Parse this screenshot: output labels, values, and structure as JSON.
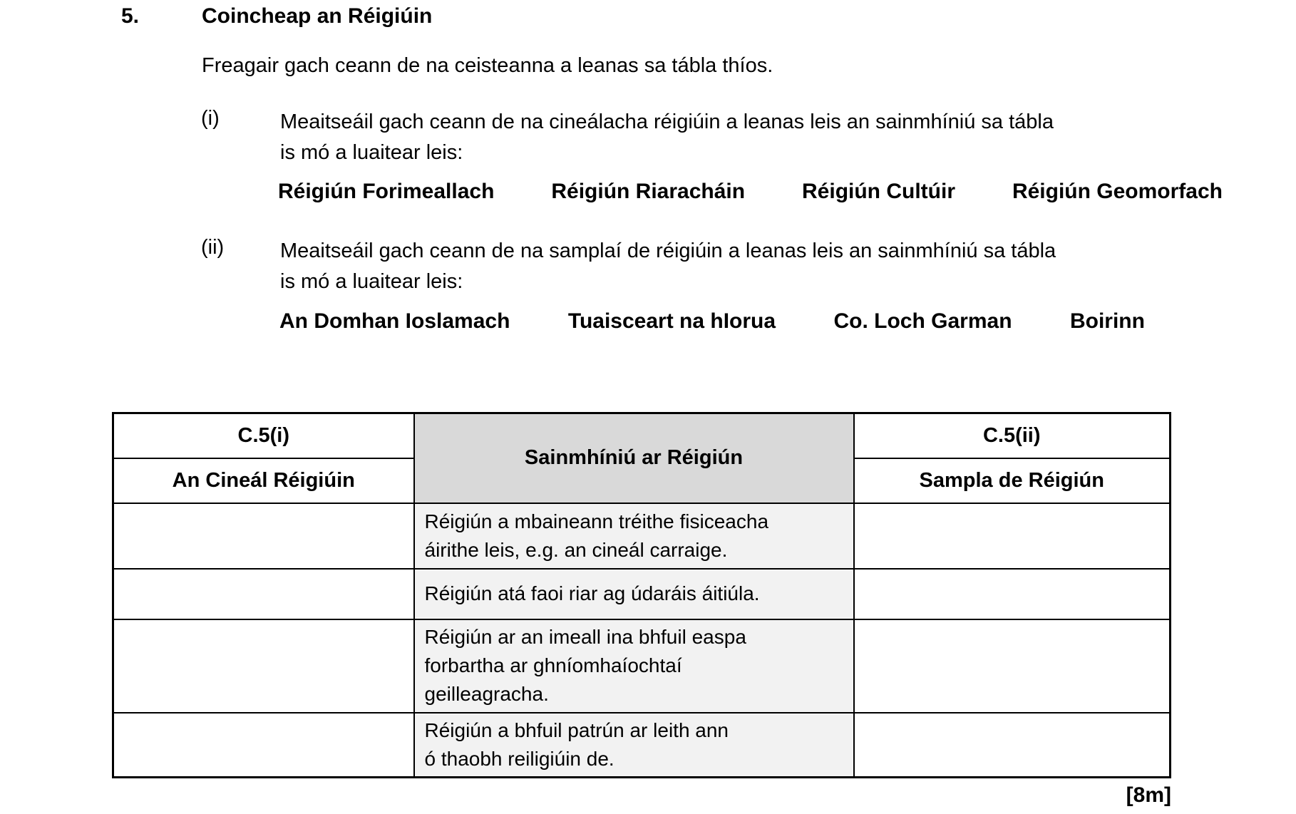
{
  "header": {
    "question_number": "5.",
    "title": "Coincheap an Réigiúin",
    "intro": "Freagair gach ceann de na ceisteanna a leanas sa tábla thíos."
  },
  "part_i": {
    "label": "(i)",
    "text_lines": [
      "Meaitseáil gach ceann de na cineálacha réigiúin a leanas leis an sainmhíniú sa tábla",
      "is mó a luaitear leis:"
    ],
    "options": [
      "Réigiún Forimeallach",
      "Réigiún Riaracháin",
      "Réigiún Cultúir",
      "Réigiún Geomorfach"
    ]
  },
  "part_ii": {
    "label": "(ii)",
    "text_lines": [
      "Meaitseáil gach ceann de na samplaí de réigiúin a leanas leis an sainmhíniú sa tábla",
      "is mó a luaitear leis:"
    ],
    "options": [
      "An Domhan Ioslamach",
      "Tuaisceart na hIorua",
      "Co. Loch Garman",
      "Boirinn"
    ]
  },
  "table": {
    "header": {
      "c5i": "C.5(i)",
      "type_label": "An Cineál Réigiúin",
      "definition": "Sainmhíniú ar Réigiún",
      "c5ii": "C.5(ii)",
      "sample_label": "Sampla de Réigiún"
    },
    "rows": [
      {
        "definition_lines": [
          "Réigiún a mbaineann tréithe fisiceacha",
          "áirithe leis, e.g. an cineál carraige."
        ]
      },
      {
        "definition_lines": [
          "Réigiún atá faoi riar ag údaráis áitiúla."
        ]
      },
      {
        "definition_lines": [
          "Réigiún ar an imeall ina bhfuil easpa",
          "forbartha ar ghníomhaíochtaí",
          "geilleagracha."
        ]
      },
      {
        "definition_lines": [
          "Réigiún a bhfuil patrún ar leith ann",
          "ó thaobh reiligiúin de."
        ]
      }
    ]
  },
  "footer": {
    "marks": "[8m]"
  },
  "colors": {
    "header_shade": "#d9d9d9",
    "definition_shade": "#f2f2f2",
    "border": "#000000",
    "text": "#000000",
    "background": "#ffffff"
  }
}
